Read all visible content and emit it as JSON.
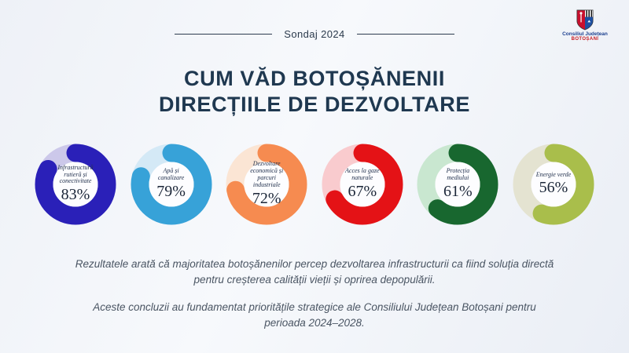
{
  "header": {
    "kicker": "Sondaj 2024",
    "logo": {
      "org_line1": "Consiliul Județean",
      "org_line2": "BOTOȘANI",
      "shield_red": "#c8102e",
      "shield_blue": "#1d50a2",
      "shield_black": "#1a1a1a"
    }
  },
  "title": {
    "line1": "CUM VĂD BOTOȘĂNENII",
    "line2": "DIRECȚIILE DE DEZVOLTARE",
    "color": "#1f3850"
  },
  "chart_data": {
    "type": "pie",
    "subtype": "donut-grid",
    "unit": "%",
    "title": "Cum văd botoșănenii direcțiile de dezvoltare",
    "legend": "none",
    "items": [
      {
        "label": "Infrastructură rutieră și conectivitate",
        "label_lines": [
          "Infrastructură",
          "rutieră și",
          "conectivitate"
        ],
        "value": 83,
        "color": "#2a20b8",
        "track": "#ccc8ea"
      },
      {
        "label": "Apă și canalizare",
        "label_lines": [
          "Apă și",
          "canalizare"
        ],
        "value": 79,
        "color": "#37a2d8",
        "track": "#d4e9f6"
      },
      {
        "label": "Dezvoltare economică și parcuri industriale",
        "label_lines": [
          "Dezvoltare",
          "economică și",
          "parcuri",
          "industriale"
        ],
        "value": 72,
        "color": "#f68b50",
        "track": "#fbe5d4"
      },
      {
        "label": "Acces la gaze naturale",
        "label_lines": [
          "Acces la gaze",
          "naturale"
        ],
        "value": 67,
        "color": "#e41216",
        "track": "#f9cbce"
      },
      {
        "label": "Protecția mediului",
        "label_lines": [
          "Protecția",
          "mediului"
        ],
        "value": 61,
        "color": "#18672f",
        "track": "#c9e7d0"
      },
      {
        "label": "Energie verde",
        "label_lines": [
          "Energie verde"
        ],
        "value": 56,
        "color": "#a9be4b",
        "track": "#e4e3d1"
      }
    ]
  },
  "footer": {
    "paragraph1": "Rezultatele arată că majoritatea botoșănenilor percep dezvoltarea infrastructurii ca fiind soluția directă pentru creșterea calității vieții și oprirea depopulării.",
    "paragraph2": "Aceste concluzii au fundamentat prioritățile strategice ale Consiliului Județean Botoșani pentru perioada 2024–2028."
  }
}
